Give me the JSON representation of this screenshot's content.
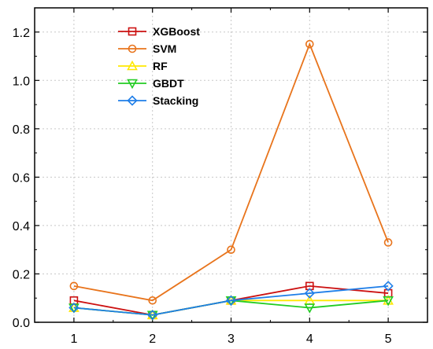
{
  "chart_data": {
    "type": "line",
    "x": [
      1,
      2,
      3,
      4,
      5
    ],
    "xlim": [
      0.5,
      5.5
    ],
    "ylim": [
      0,
      1.3
    ],
    "xticks": [
      "1",
      "2",
      "3",
      "4",
      "5"
    ],
    "yticks": [
      "0.0",
      "0.2",
      "0.4",
      "0.6",
      "0.8",
      "1.0",
      "1.2"
    ],
    "ytick_values": [
      0,
      0.2,
      0.4,
      0.6,
      0.8,
      1.0,
      1.2
    ],
    "grid": true,
    "legend_position": "top-left",
    "series": [
      {
        "name": "XGBoost",
        "color": "#cc1111",
        "marker": "square",
        "values": [
          0.09,
          0.03,
          0.09,
          0.15,
          0.12
        ]
      },
      {
        "name": "SVM",
        "color": "#e8741c",
        "marker": "circle",
        "values": [
          0.15,
          0.09,
          0.3,
          1.15,
          0.33
        ]
      },
      {
        "name": "RF",
        "color": "#ffe800",
        "marker": "triangle-up",
        "values": [
          0.06,
          0.03,
          0.09,
          0.09,
          0.09
        ]
      },
      {
        "name": "GBDT",
        "color": "#22cc22",
        "marker": "triangle-down",
        "values": [
          0.06,
          0.03,
          0.09,
          0.06,
          0.09
        ]
      },
      {
        "name": "Stacking",
        "color": "#1e7ee8",
        "marker": "diamond",
        "values": [
          0.06,
          0.03,
          0.09,
          0.12,
          0.15
        ]
      }
    ]
  }
}
